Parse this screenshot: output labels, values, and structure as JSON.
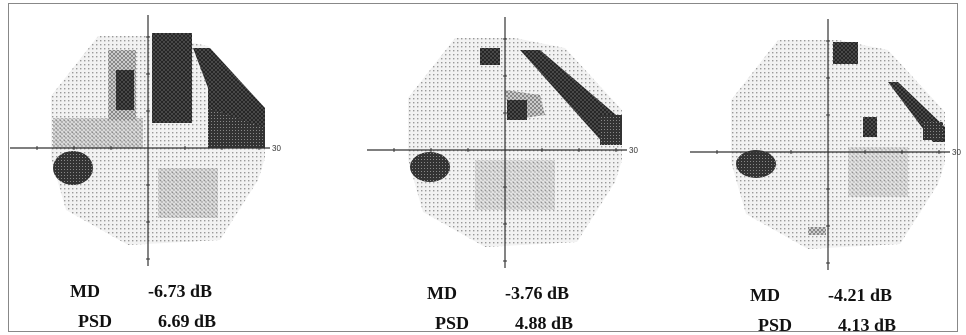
{
  "panels": [
    {
      "axis_label": "30",
      "md_label": "MD",
      "md": "-6.73 dB",
      "psd_label": "PSD",
      "psd": "6.69 dB"
    },
    {
      "axis_label": "30",
      "md_label": "MD",
      "md": "-3.76 dB",
      "psd_label": "PSD",
      "psd": "4.88 dB"
    },
    {
      "axis_label": "30",
      "md_label": "MD",
      "md": "-4.21 dB",
      "psd_label": "PSD",
      "psd": "4.13 dB"
    }
  ]
}
